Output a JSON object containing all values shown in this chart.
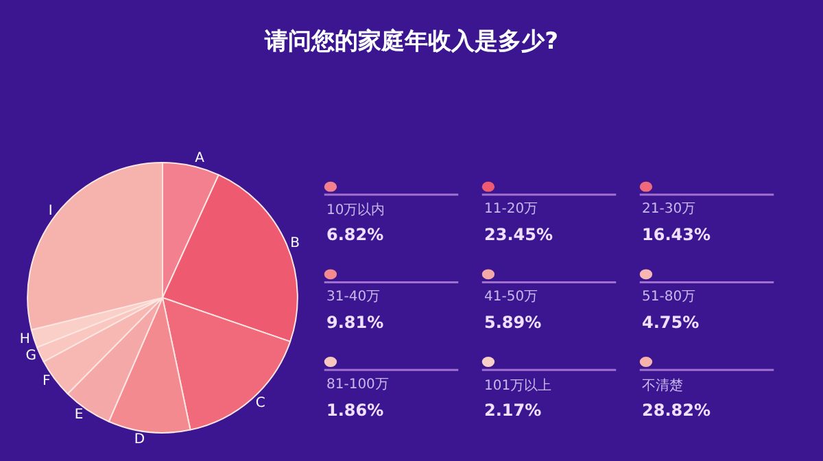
{
  "chart_data": {
    "type": "pie",
    "title": "请问您的家庭年收入是多少?",
    "categories": [
      "10万以内",
      "11-20万",
      "21-30万",
      "31-40万",
      "41-50万",
      "51-80万",
      "81-100万",
      "101万以上",
      "不清楚"
    ],
    "values": [
      6.82,
      23.45,
      16.43,
      9.81,
      5.89,
      4.75,
      1.86,
      2.17,
      28.82
    ],
    "value_labels": [
      "6.82%",
      "23.45%",
      "16.43%",
      "9.81%",
      "5.89%",
      "4.75%",
      "1.86%",
      "2.17%",
      "28.82%"
    ],
    "colors": [
      "#f2808e",
      "#ee5a70",
      "#f06a7c",
      "#f28a90",
      "#f5a8a8",
      "#f7b8b4",
      "#f9c6c0",
      "#facfc8",
      "#f6b2ac"
    ],
    "annotations": [
      "A",
      "B",
      "C",
      "D",
      "E",
      "F",
      "G",
      "H",
      "I"
    ],
    "legend": "right"
  }
}
